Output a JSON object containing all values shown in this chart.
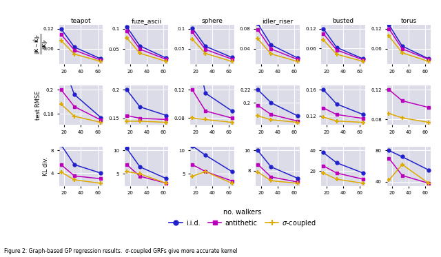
{
  "x": [
    16,
    32,
    64
  ],
  "xticks": [
    20,
    40,
    60
  ],
  "col_labels": [
    "teapot",
    "fuze_ascii",
    "sphere",
    "idler_riser",
    "busted",
    "torus"
  ],
  "colors": {
    "iid": "#2020cc",
    "antithetic": "#bb00bb",
    "sigma": "#ddaa00"
  },
  "row0": {
    "teapot": {
      "iid": [
        0.12,
        0.065,
        0.03
      ],
      "antithetic": [
        0.103,
        0.056,
        0.026
      ],
      "sigma": [
        0.085,
        0.044,
        0.022
      ]
    },
    "fuze_ascii": {
      "iid": [
        0.105,
        0.058,
        0.028
      ],
      "antithetic": [
        0.095,
        0.05,
        0.025
      ],
      "sigma": [
        0.078,
        0.04,
        0.02
      ]
    },
    "sphere": {
      "iid": [
        0.102,
        0.056,
        0.028
      ],
      "antithetic": [
        0.092,
        0.048,
        0.024
      ],
      "sigma": [
        0.074,
        0.038,
        0.018
      ]
    },
    "idler_riser": {
      "iid": [
        0.09,
        0.048,
        0.022
      ],
      "antithetic": [
        0.078,
        0.04,
        0.019
      ],
      "sigma": [
        0.06,
        0.03,
        0.015
      ]
    },
    "busted": {
      "iid": [
        0.12,
        0.063,
        0.028
      ],
      "antithetic": [
        0.105,
        0.055,
        0.025
      ],
      "sigma": [
        0.086,
        0.042,
        0.02
      ]
    },
    "torus": {
      "iid": [
        0.132,
        0.068,
        0.03
      ],
      "antithetic": [
        0.12,
        0.06,
        0.028
      ],
      "sigma": [
        0.098,
        0.048,
        0.022
      ]
    }
  },
  "row0_yticks": {
    "teapot": [
      0.06,
      0.12
    ],
    "fuze_ascii": [
      0.05,
      0.1
    ],
    "sphere": [
      0.05,
      0.1
    ],
    "idler_riser": [
      0.04,
      0.08
    ],
    "busted": [
      0.06,
      0.12
    ],
    "torus": [
      0.06,
      0.12
    ]
  },
  "row1": {
    "teapot": {
      "iid": [
        0.225,
        0.196,
        0.177
      ],
      "antithetic": [
        0.2,
        0.186,
        0.175
      ],
      "sigma": [
        0.188,
        0.178,
        0.173
      ]
    },
    "fuze_ascii": {
      "iid": [
        0.2,
        0.17,
        0.155
      ],
      "antithetic": [
        0.155,
        0.15,
        0.148
      ],
      "sigma": [
        0.145,
        0.145,
        0.143
      ]
    },
    "sphere": {
      "iid": [
        0.2,
        0.115,
        0.09
      ],
      "antithetic": [
        0.12,
        0.09,
        0.08
      ],
      "sigma": [
        0.08,
        0.078,
        0.074
      ]
    },
    "idler_riser": {
      "iid": [
        0.22,
        0.2,
        0.18
      ],
      "antithetic": [
        0.196,
        0.182,
        0.172
      ],
      "sigma": [
        0.18,
        0.174,
        0.17
      ]
    },
    "busted": {
      "iid": [
        0.16,
        0.138,
        0.122
      ],
      "antithetic": [
        0.132,
        0.122,
        0.116
      ],
      "sigma": [
        0.118,
        0.112,
        0.11
      ]
    },
    "torus": {
      "iid": [
        0.195,
        0.158,
        0.148
      ],
      "antithetic": [
        0.12,
        0.105,
        0.096
      ],
      "sigma": [
        0.088,
        0.082,
        0.076
      ]
    }
  },
  "row1_yticks": {
    "teapot": [
      0.18,
      0.2
    ],
    "fuze_ascii": [
      0.15,
      0.2
    ],
    "sphere": [
      0.08,
      0.12
    ],
    "idler_riser": [
      0.2,
      0.22
    ],
    "busted": [
      0.12,
      0.16
    ],
    "torus": [
      0.08,
      0.12
    ]
  },
  "row2": {
    "teapot": {
      "iid": [
        9.0,
        5.5,
        4.0
      ],
      "antithetic": [
        5.5,
        3.5,
        3.0
      ],
      "sigma": [
        4.2,
        2.8,
        2.2
      ]
    },
    "fuze_ascii": {
      "iid": [
        10.5,
        6.5,
        4.0
      ],
      "antithetic": [
        7.0,
        4.5,
        3.0
      ],
      "sigma": [
        5.5,
        5.0,
        3.0
      ]
    },
    "sphere": {
      "iid": [
        11.0,
        9.0,
        5.5
      ],
      "antithetic": [
        7.0,
        5.5,
        3.5
      ],
      "sigma": [
        4.5,
        5.5,
        3.0
      ]
    },
    "idler_riser": {
      "iid": [
        16.0,
        9.5,
        5.0
      ],
      "antithetic": [
        10.5,
        5.5,
        3.5
      ],
      "sigma": [
        7.5,
        4.0,
        3.0
      ]
    },
    "busted": {
      "iid": [
        38.0,
        28.0,
        18.0
      ],
      "antithetic": [
        25.0,
        18.0,
        12.0
      ],
      "sigma": [
        18.0,
        12.0,
        8.0
      ]
    },
    "torus": {
      "iid": [
        80.0,
        72.0,
        55.0
      ],
      "antithetic": [
        70.0,
        48.0,
        38.0
      ],
      "sigma": [
        42.0,
        62.0,
        38.0
      ]
    }
  },
  "row2_yticks": {
    "teapot": [
      4,
      8
    ],
    "fuze_ascii": [
      5,
      10
    ],
    "sphere": [
      5,
      10
    ],
    "idler_riser": [
      8,
      16
    ],
    "busted": [
      20,
      40
    ],
    "torus": [
      40,
      80
    ]
  },
  "background_color": "#dcdce8",
  "grid_color": "#ffffff",
  "ylabel_row0": "$\\frac{\\|\\mathbf{K} - \\hat{\\mathbf{K}}\\|_{\\!F}}{\\|\\mathbf{K}\\|_{\\!F}}$",
  "ylabel_row1": "test RMSE",
  "ylabel_row2": "KL div.",
  "xlabel": "no. walkers",
  "caption": "Figure 2: Graph-based GP regression results.  σ-coupled GRFs give more accurate kernel"
}
